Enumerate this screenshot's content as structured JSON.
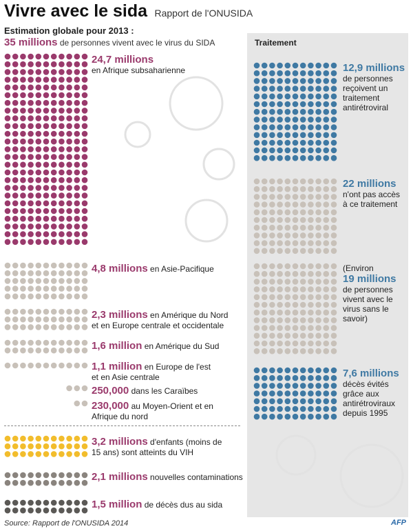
{
  "header": {
    "title": "Vivre avec le sida",
    "subtitle": "Rapport de l'ONUSIDA",
    "estimate_label": "Estimation globale pour 2013 :",
    "total_value": "35 millions",
    "total_text": "de personnes vivent avec le virus du SIDA"
  },
  "treatment_title": "Traitement",
  "labels": {
    "africa": {
      "value": "24,7 millions",
      "text": "en Afrique subsaharienne"
    },
    "asia": {
      "value": "4,8 millions",
      "text": "en Asie-Pacifique"
    },
    "na": {
      "value": "2,3 millions",
      "text": "en Amérique du Nord",
      "text2": "et en Europe centrale et occidentale"
    },
    "sa": {
      "value": "1,6 million",
      "text": "en Amérique du Sud"
    },
    "eeca": {
      "value": "1,1 million",
      "text": "en Europe de l'est",
      "text2": "et en Asie centrale"
    },
    "carib": {
      "value": "250,000",
      "text": "dans les Caraïbes"
    },
    "mena": {
      "value": "230,000",
      "text": "au Moyen-Orient et en",
      "text2": "Afrique du nord"
    },
    "children": {
      "value": "3,2 millions",
      "text": "d'enfants (moins de",
      "text2": "15 ans) sont atteints du VIH"
    },
    "newinf": {
      "value": "2,1 millions",
      "text": "nouvelles contaminations"
    },
    "deaths": {
      "value": "1,5 million",
      "text": "de décès dus au sida"
    },
    "treated": {
      "value": "12,9 millions",
      "l1": "de personnes",
      "l2": "reçoivent un",
      "l3": "traitement",
      "l4": "antirétroviral"
    },
    "notreated": {
      "value": "22 millions",
      "l1": "n'ont pas accès",
      "l2": "à ce traitement"
    },
    "unaware": {
      "pre": "(Environ",
      "value": "19 millions",
      "l1": "de personnes",
      "l2": "vivent avec le",
      "l3": "virus sans le",
      "l4": "savoir)"
    },
    "averted": {
      "value": "7,6 millions",
      "l1": "décès évités",
      "l2": "grâce aux",
      "l3": "antirétroviraux",
      "l4": "depuis 1995"
    }
  },
  "source": "Source: Rapport de l'ONUSIDA 2014",
  "logo": "AFP",
  "colors": {
    "purple": "#9a3a6c",
    "gray": "#c8c1b9",
    "yellow": "#f2bd2c",
    "darkgray": "#8a847e",
    "dark": "#5b5956",
    "blue": "#3f79a3",
    "panel": "#e6e6e6"
  },
  "chart_data": {
    "type": "pictograph",
    "unit": "1 point ≈ 100 000 personnes",
    "title": "35 millions de personnes vivent avec le virus du SIDA",
    "regions": [
      {
        "name": "Afrique subsaharienne",
        "value_millions": 24.7
      },
      {
        "name": "Asie-Pacifique",
        "value_millions": 4.8
      },
      {
        "name": "Amérique du Nord et Europe centrale et occidentale",
        "value_millions": 2.3
      },
      {
        "name": "Amérique du Sud",
        "value_millions": 1.6
      },
      {
        "name": "Europe de l'est et Asie centrale",
        "value_millions": 1.1
      },
      {
        "name": "Caraïbes",
        "value_millions": 0.25
      },
      {
        "name": "Moyen-Orient et Afrique du nord",
        "value_millions": 0.23
      }
    ],
    "other": [
      {
        "name": "Enfants (moins de 15 ans) atteints du VIH",
        "value_millions": 3.2
      },
      {
        "name": "Nouvelles contaminations",
        "value_millions": 2.1
      },
      {
        "name": "Décès dus au sida",
        "value_millions": 1.5
      }
    ],
    "treatment": [
      {
        "name": "Reçoivent un traitement antirétroviral",
        "value_millions": 12.9
      },
      {
        "name": "N'ont pas accès à ce traitement",
        "value_millions": 22
      },
      {
        "name": "Vivent avec le virus sans le savoir",
        "value_millions": 19
      },
      {
        "name": "Décès évités grâce aux antirétroviraux depuis 1995",
        "value_millions": 7.6
      }
    ]
  }
}
